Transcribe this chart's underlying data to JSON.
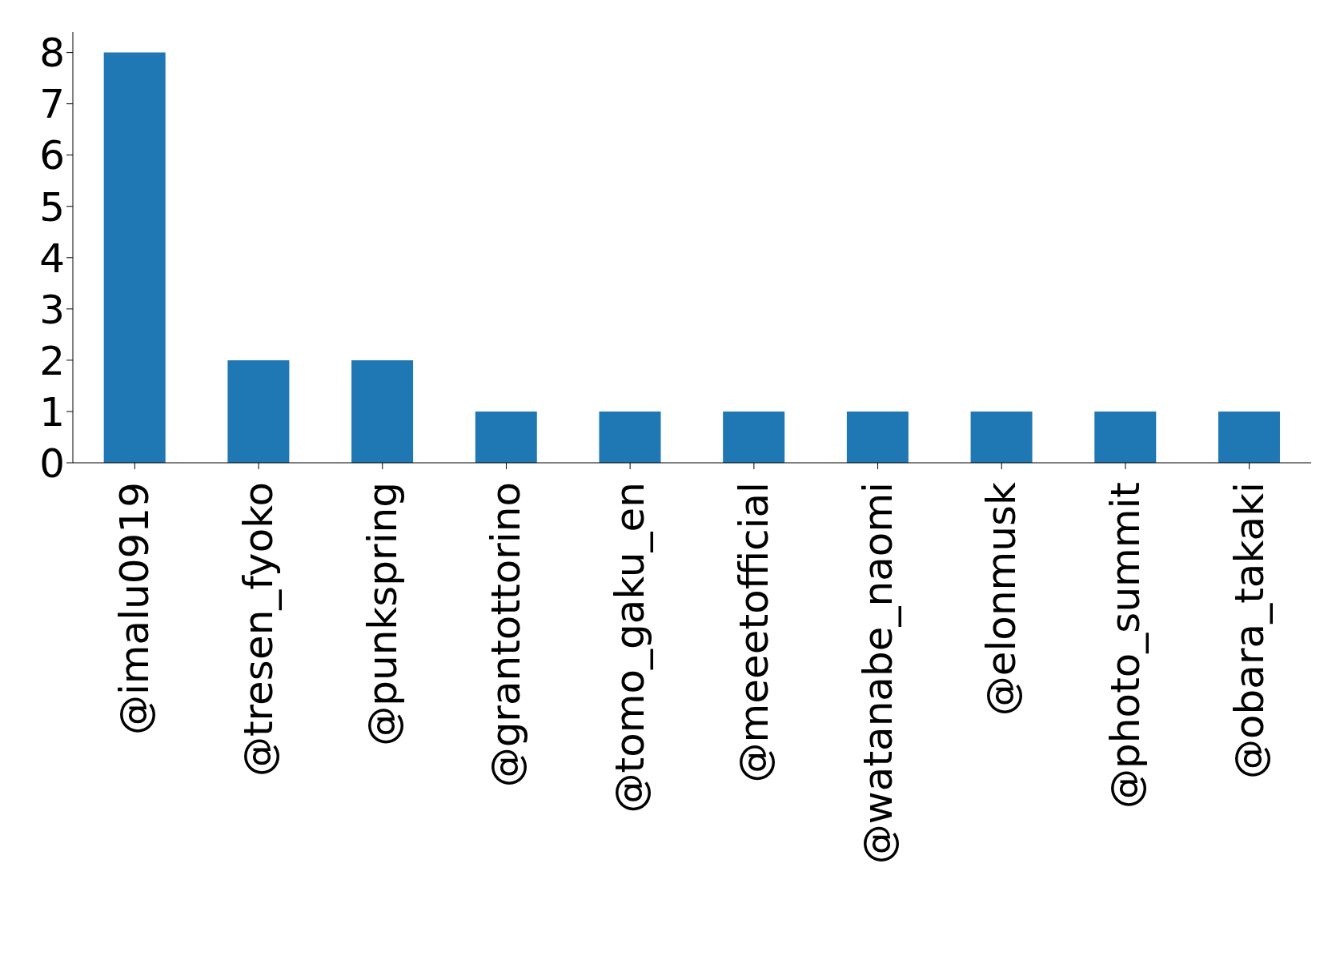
{
  "chart_data": {
    "type": "bar",
    "categories": [
      "@imalu0919",
      "@tresen_fyoko",
      "@punkspring",
      "@grantottorino",
      "@tomo_gaku_en",
      "@meeetofficial",
      "@watanabe_naomi",
      "@elonmusk",
      "@photo_summit",
      "@obara_takaki"
    ],
    "values": [
      8,
      2,
      2,
      1,
      1,
      1,
      1,
      1,
      1,
      1
    ],
    "color": "#1f77b4",
    "ylim": [
      0,
      8.4
    ],
    "yticks": [
      0,
      1,
      2,
      3,
      4,
      5,
      6,
      7,
      8
    ],
    "grid": false,
    "legend": false
  }
}
